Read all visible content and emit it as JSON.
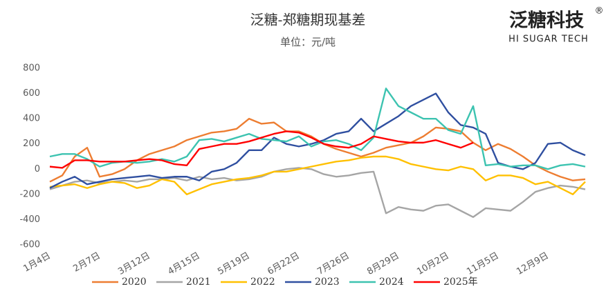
{
  "chart_data": {
    "type": "line",
    "title": "泛糖-郑糖期现基差",
    "subtitle": "单位：元/吨",
    "logo": {
      "name": "泛糖科技",
      "mark": "®",
      "tagline": "HI SUGAR TECH"
    },
    "categories": [
      "1月4日",
      null,
      null,
      null,
      "2月7日",
      null,
      null,
      null,
      "3月12日",
      null,
      null,
      null,
      "4月15日",
      null,
      null,
      null,
      "5月19日",
      null,
      null,
      null,
      "6月22日",
      null,
      null,
      null,
      "7月26日",
      null,
      null,
      null,
      "8月29日",
      null,
      null,
      null,
      "10月2日",
      null,
      null,
      null,
      "11月5日",
      null,
      null,
      null,
      "12月9日",
      null,
      null,
      null
    ],
    "ylim": [
      -600,
      800
    ],
    "yticks": [
      -600,
      -400,
      -200,
      0,
      200,
      400,
      600,
      800
    ],
    "grid": false,
    "series": [
      {
        "name": "2020",
        "color": "#ed7d31",
        "values": [
          -100,
          -50,
          100,
          170,
          -60,
          -40,
          0,
          70,
          120,
          150,
          180,
          230,
          260,
          290,
          300,
          320,
          400,
          360,
          370,
          300,
          300,
          260,
          200,
          160,
          130,
          100,
          130,
          170,
          190,
          210,
          260,
          330,
          320,
          300,
          210,
          150,
          200,
          160,
          100,
          30,
          -20,
          -60,
          -90,
          -80
        ]
      },
      {
        "name": "2021",
        "color": "#a5a5a5",
        "values": [
          -160,
          -130,
          -100,
          -90,
          -110,
          -100,
          -90,
          -100,
          -80,
          -80,
          -70,
          -90,
          -60,
          -80,
          -70,
          -90,
          -80,
          -60,
          -20,
          0,
          10,
          0,
          -40,
          -60,
          -50,
          -30,
          -20,
          -350,
          -300,
          -320,
          -330,
          -290,
          -280,
          -330,
          -380,
          -310,
          -320,
          -330,
          -260,
          -180,
          -150,
          -130,
          -140,
          -160
        ]
      },
      {
        "name": "2022",
        "color": "#ffc000",
        "values": [
          -140,
          -130,
          -120,
          -150,
          -120,
          -100,
          -110,
          -150,
          -130,
          -80,
          -100,
          -200,
          -160,
          -120,
          -100,
          -80,
          -70,
          -50,
          -20,
          -20,
          0,
          20,
          40,
          60,
          70,
          90,
          100,
          100,
          80,
          40,
          20,
          0,
          -10,
          20,
          0,
          -90,
          -50,
          -50,
          -70,
          -120,
          -100,
          -150,
          -200,
          -100
        ]
      },
      {
        "name": "2023",
        "color": "#2f4fa0",
        "values": [
          -150,
          -100,
          -60,
          -120,
          -100,
          -80,
          -70,
          -60,
          -50,
          -70,
          -60,
          -60,
          -90,
          -20,
          0,
          50,
          150,
          150,
          250,
          200,
          180,
          200,
          230,
          280,
          300,
          400,
          300,
          360,
          420,
          500,
          550,
          600,
          450,
          350,
          330,
          280,
          50,
          20,
          0,
          50,
          200,
          210,
          150,
          110
        ]
      },
      {
        "name": "2024",
        "color": "#3cc3b0",
        "values": [
          100,
          120,
          120,
          80,
          20,
          50,
          60,
          50,
          60,
          80,
          60,
          100,
          230,
          240,
          220,
          250,
          280,
          240,
          230,
          220,
          260,
          180,
          220,
          230,
          200,
          150,
          250,
          640,
          500,
          450,
          400,
          400,
          310,
          280,
          500,
          30,
          40,
          20,
          30,
          30,
          0,
          30,
          40,
          20
        ]
      },
      {
        "name": "2025年",
        "color": "#ff0000",
        "values": [
          20,
          10,
          70,
          70,
          60,
          60,
          60,
          70,
          80,
          70,
          40,
          30,
          160,
          180,
          200,
          200,
          220,
          250,
          280,
          300,
          290,
          250,
          200,
          180,
          170,
          200,
          260,
          240,
          220,
          210,
          210,
          230,
          200,
          170,
          210,
          null,
          null,
          null,
          null,
          null,
          null,
          null,
          null,
          null
        ]
      }
    ]
  }
}
